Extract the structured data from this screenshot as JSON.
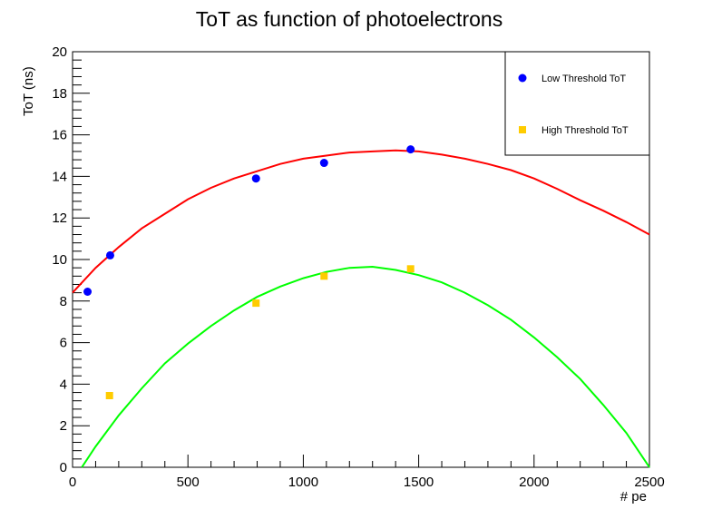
{
  "chart_data": {
    "type": "scatter",
    "title": "ToT as function of photoelectrons",
    "xlabel": "# pe",
    "ylabel": "ToT (ns)",
    "xlim": [
      0,
      2500
    ],
    "ylim": [
      0,
      20
    ],
    "x_ticks": [
      0,
      500,
      1000,
      1500,
      2000,
      2500
    ],
    "y_ticks": [
      0,
      2,
      4,
      6,
      8,
      10,
      12,
      14,
      16,
      18,
      20
    ],
    "grid": false,
    "legend_position": "top-right",
    "series": [
      {
        "name": "Low Threshold ToT",
        "marker": "circle",
        "color": "#0000ff",
        "points": [
          [
            65,
            8.45
          ],
          [
            163,
            10.2
          ],
          [
            795,
            13.9
          ],
          [
            1090,
            14.65
          ],
          [
            1465,
            15.3
          ]
        ],
        "fit": {
          "color": "#ff0000",
          "domain": [
            0,
            2500
          ],
          "curve": [
            [
              0,
              8.4
            ],
            [
              100,
              9.6
            ],
            [
              200,
              10.6
            ],
            [
              300,
              11.5
            ],
            [
              400,
              12.2
            ],
            [
              500,
              12.9
            ],
            [
              600,
              13.45
            ],
            [
              700,
              13.9
            ],
            [
              800,
              14.25
            ],
            [
              900,
              14.6
            ],
            [
              1000,
              14.85
            ],
            [
              1100,
              15.0
            ],
            [
              1200,
              15.15
            ],
            [
              1300,
              15.2
            ],
            [
              1400,
              15.25
            ],
            [
              1500,
              15.2
            ],
            [
              1600,
              15.05
            ],
            [
              1700,
              14.85
            ],
            [
              1800,
              14.6
            ],
            [
              1900,
              14.3
            ],
            [
              2000,
              13.9
            ],
            [
              2100,
              13.4
            ],
            [
              2200,
              12.85
            ],
            [
              2300,
              12.35
            ],
            [
              2400,
              11.8
            ],
            [
              2500,
              11.2
            ]
          ]
        }
      },
      {
        "name": "High Threshold ToT",
        "marker": "square",
        "color": "#ffcc00",
        "points": [
          [
            160,
            3.45
          ],
          [
            795,
            7.9
          ],
          [
            1090,
            9.2
          ],
          [
            1465,
            9.55
          ]
        ],
        "fit": {
          "color": "#00ff00",
          "domain": [
            40,
            2500
          ],
          "curve": [
            [
              40,
              0.0
            ],
            [
              100,
              1.0
            ],
            [
              200,
              2.5
            ],
            [
              300,
              3.8
            ],
            [
              400,
              5.0
            ],
            [
              500,
              5.95
            ],
            [
              600,
              6.8
            ],
            [
              700,
              7.55
            ],
            [
              800,
              8.2
            ],
            [
              900,
              8.7
            ],
            [
              1000,
              9.1
            ],
            [
              1100,
              9.4
            ],
            [
              1200,
              9.6
            ],
            [
              1300,
              9.65
            ],
            [
              1400,
              9.5
            ],
            [
              1500,
              9.25
            ],
            [
              1600,
              8.9
            ],
            [
              1700,
              8.4
            ],
            [
              1800,
              7.8
            ],
            [
              1900,
              7.1
            ],
            [
              2000,
              6.25
            ],
            [
              2100,
              5.3
            ],
            [
              2200,
              4.25
            ],
            [
              2300,
              3.0
            ],
            [
              2400,
              1.65
            ],
            [
              2500,
              0.0
            ]
          ]
        }
      }
    ]
  }
}
